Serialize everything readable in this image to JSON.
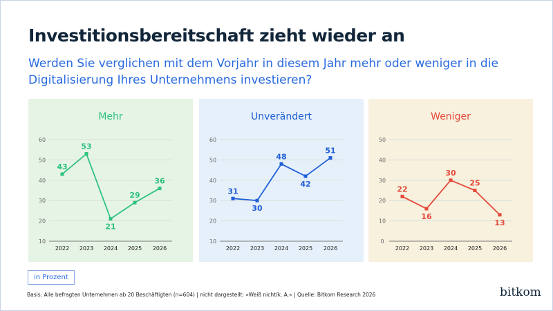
{
  "header": {
    "title": "Investitionsbereitschaft zieht wieder an",
    "subtitle": "Werden Sie verglichen mit dem Vorjahr in diesem Jahr mehr oder weniger in die Digitalisierung Ihres Unternehmens investieren?"
  },
  "chart_data": [
    {
      "type": "line",
      "title": "Mehr",
      "categories": [
        "2022",
        "2023",
        "2024",
        "2025",
        "2026"
      ],
      "values": [
        43,
        53,
        21,
        29,
        36
      ],
      "ylim": [
        10,
        60
      ],
      "yticks": [
        10,
        20,
        30,
        40,
        50,
        60
      ],
      "color": "#2ec27e",
      "background": "#e6f4e6",
      "grid": true
    },
    {
      "type": "line",
      "title": "Unverändert",
      "categories": [
        "2022",
        "2023",
        "2024",
        "2025",
        "2026"
      ],
      "values": [
        31,
        30,
        48,
        42,
        51
      ],
      "ylim": [
        10,
        60
      ],
      "yticks": [
        10,
        20,
        30,
        40,
        50,
        60
      ],
      "color": "#1f5fd6",
      "background": "#e6f0fb",
      "grid": true
    },
    {
      "type": "line",
      "title": "Weniger",
      "categories": [
        "2022",
        "2023",
        "2024",
        "2025",
        "2026"
      ],
      "values": [
        22,
        16,
        30,
        25,
        13
      ],
      "ylim": [
        0,
        50
      ],
      "yticks": [
        0,
        10,
        20,
        30,
        40,
        50
      ],
      "color": "#e5483a",
      "background": "#f7f1de",
      "grid": true
    }
  ],
  "footer": {
    "unit": "in Prozent",
    "note": "Basis: Alle befragten Unternehmen ab 20 Beschäftigten (n=604) | nicht dargestellt: »Weiß nicht/k. A.« | Quelle: Bitkom Research 2026",
    "logo": "bitkom"
  }
}
